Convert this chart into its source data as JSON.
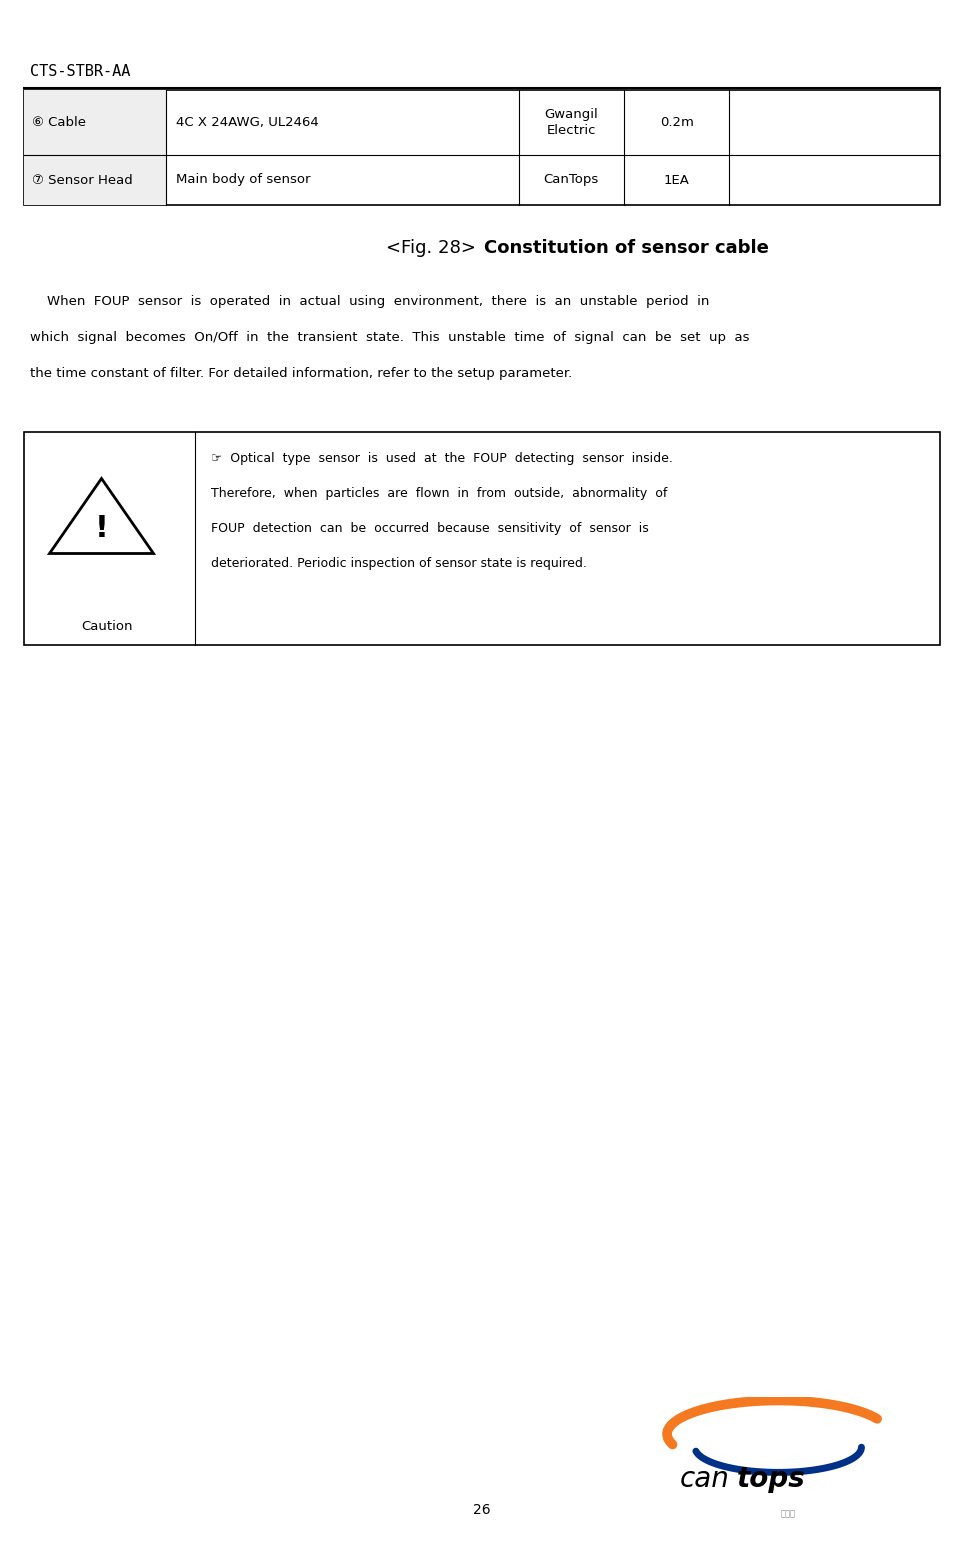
{
  "page_width": 9.64,
  "page_height": 15.44,
  "bg_color": "#ffffff",
  "header_text": "CTS-STBR-AA",
  "page_number": "26",
  "table_rows": [
    {
      "col1": "⑥ Cable",
      "col2": "4C X 24AWG, UL2464",
      "col3a": "Gwangil",
      "col3b": "Electric",
      "col4": "0.2m",
      "col5": ""
    },
    {
      "col1": "⑦ Sensor Head",
      "col2": "Main body of sensor",
      "col3a": "CanTops",
      "col3b": "",
      "col4": "1EA",
      "col5": ""
    }
  ],
  "fig_title_pre": "<Fig. 28> ",
  "fig_title_post": "Constitution of sensor cable",
  "body_lines": [
    "    When  FOUP  sensor  is  operated  in  actual  using  environment,  there  is  an  unstable  period  in",
    "which  signal  becomes  On/Off  in  the  transient  state.  This  unstable  time  of  signal  can  be  set  up  as",
    "the time constant of filter. For detailed information, refer to the setup parameter."
  ],
  "caution_lines": [
    "☞  Optical  type  sensor  is  used  at  the  FOUP  detecting  sensor  inside.",
    "Therefore,  when  particles  are  flown  in  from  outside,  abnormality  of",
    "FOUP  detection  can  be  occurred  because  sensitivity  of  sensor  is",
    "deteriorated. Periodic inspection of sensor state is required."
  ],
  "caution_label": "Caution",
  "text_color": "#000000",
  "border_color": "#000000",
  "header_bg": "#f0f0f0",
  "logo_orange": "#f47920",
  "logo_blue": "#003087"
}
